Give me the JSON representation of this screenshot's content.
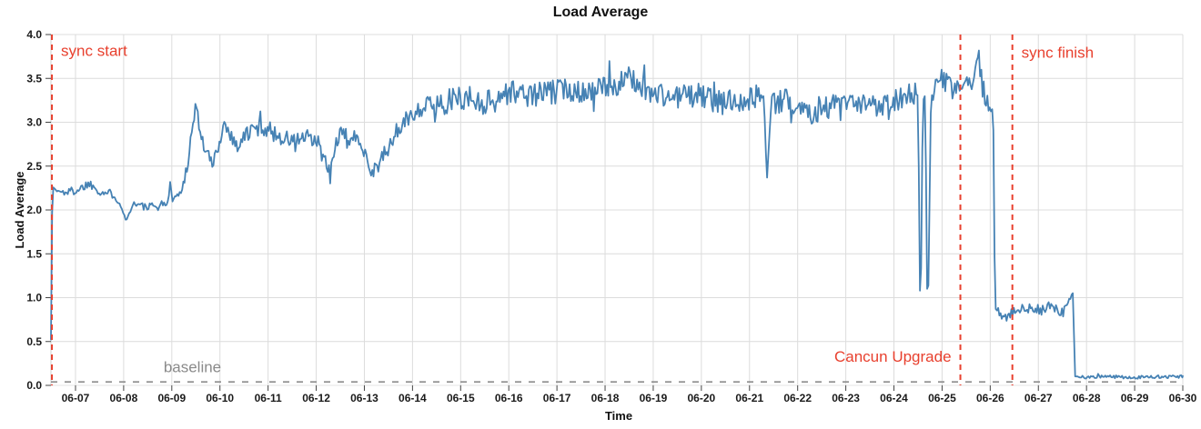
{
  "chart_data": {
    "type": "line",
    "title": "Load Average",
    "xlabel": "Time",
    "ylabel": "Load Average",
    "ylim": [
      0.0,
      4.0
    ],
    "yticks": [
      "0.0",
      "0.5",
      "1.0",
      "1.5",
      "2.0",
      "2.5",
      "3.0",
      "3.5",
      "4.0"
    ],
    "ytick_values": [
      0.0,
      0.5,
      1.0,
      1.5,
      2.0,
      2.5,
      3.0,
      3.5,
      4.0
    ],
    "xticks": [
      "06-07",
      "06-08",
      "06-09",
      "06-10",
      "06-11",
      "06-12",
      "06-13",
      "06-14",
      "06-15",
      "06-16",
      "06-17",
      "06-18",
      "06-19",
      "06-20",
      "06-21",
      "06-22",
      "06-23",
      "06-24",
      "06-25",
      "06-26",
      "06-27",
      "06-28",
      "06-29",
      "06-30"
    ],
    "xtick_days": [
      7,
      8,
      9,
      10,
      11,
      12,
      13,
      14,
      15,
      16,
      17,
      18,
      19,
      20,
      21,
      22,
      23,
      24,
      25,
      26,
      27,
      28,
      29,
      30
    ],
    "xlim_days": [
      6.49,
      30.0
    ],
    "grid": true,
    "colors": {
      "series": "#4682b4",
      "annotation_red": "#e8402e",
      "baseline_gray": "#8c8c8c",
      "gridline": "#dcdcdc",
      "tick": "#444444"
    },
    "series": [
      {
        "name": "load average",
        "color": "#4682b4",
        "keypoints": [
          [
            6.49,
            0.55
          ],
          [
            6.52,
            2.25
          ],
          [
            6.7,
            2.2
          ],
          [
            7.0,
            2.22
          ],
          [
            7.3,
            2.3
          ],
          [
            7.55,
            2.2
          ],
          [
            7.8,
            2.18
          ],
          [
            7.95,
            2.05
          ],
          [
            8.05,
            1.87
          ],
          [
            8.2,
            2.08
          ],
          [
            8.5,
            2.02
          ],
          [
            8.75,
            2.05
          ],
          [
            8.93,
            2.1
          ],
          [
            8.97,
            2.35
          ],
          [
            9.02,
            2.12
          ],
          [
            9.2,
            2.2
          ],
          [
            9.35,
            2.6
          ],
          [
            9.5,
            3.22
          ],
          [
            9.62,
            2.8
          ],
          [
            9.85,
            2.5
          ],
          [
            10.1,
            3.0
          ],
          [
            10.35,
            2.72
          ],
          [
            10.6,
            2.9
          ],
          [
            10.9,
            2.95
          ],
          [
            11.2,
            2.85
          ],
          [
            11.5,
            2.78
          ],
          [
            11.8,
            2.82
          ],
          [
            12.05,
            2.75
          ],
          [
            12.28,
            2.4
          ],
          [
            12.45,
            2.85
          ],
          [
            12.7,
            2.82
          ],
          [
            12.95,
            2.78
          ],
          [
            13.15,
            2.42
          ],
          [
            13.45,
            2.65
          ],
          [
            13.75,
            2.95
          ],
          [
            14.1,
            3.15
          ],
          [
            14.5,
            3.2
          ],
          [
            15.0,
            3.28
          ],
          [
            15.5,
            3.22
          ],
          [
            16.0,
            3.35
          ],
          [
            16.6,
            3.3
          ],
          [
            17.2,
            3.38
          ],
          [
            17.8,
            3.35
          ],
          [
            18.3,
            3.45
          ],
          [
            18.55,
            3.5
          ],
          [
            18.9,
            3.35
          ],
          [
            19.4,
            3.28
          ],
          [
            19.9,
            3.32
          ],
          [
            20.4,
            3.22
          ],
          [
            20.9,
            3.28
          ],
          [
            21.3,
            3.3
          ],
          [
            21.36,
            2.32
          ],
          [
            21.45,
            3.2
          ],
          [
            21.8,
            3.25
          ],
          [
            22.3,
            3.12
          ],
          [
            22.8,
            3.2
          ],
          [
            23.3,
            3.18
          ],
          [
            23.8,
            3.22
          ],
          [
            24.2,
            3.3
          ],
          [
            24.5,
            3.32
          ],
          [
            24.55,
            0.52
          ],
          [
            24.6,
            3.25
          ],
          [
            24.65,
            3.3
          ],
          [
            24.7,
            0.55
          ],
          [
            24.77,
            3.3
          ],
          [
            25.0,
            3.5
          ],
          [
            25.2,
            3.35
          ],
          [
            25.45,
            3.45
          ],
          [
            25.6,
            3.35
          ],
          [
            25.75,
            3.82
          ],
          [
            25.85,
            3.35
          ],
          [
            26.0,
            3.25
          ],
          [
            26.06,
            3.2
          ],
          [
            26.1,
            0.88
          ],
          [
            26.3,
            0.78
          ],
          [
            26.55,
            0.85
          ],
          [
            26.8,
            0.88
          ],
          [
            27.0,
            0.82
          ],
          [
            27.2,
            0.9
          ],
          [
            27.45,
            0.85
          ],
          [
            27.6,
            0.92
          ],
          [
            27.72,
            1.05
          ],
          [
            27.76,
            0.1
          ],
          [
            28.0,
            0.09
          ],
          [
            28.5,
            0.1
          ],
          [
            29.0,
            0.09
          ],
          [
            29.5,
            0.1
          ],
          [
            30.0,
            0.1
          ]
        ],
        "noise_segments": [
          [
            6.49,
            6.6,
            0.02
          ],
          [
            6.6,
            7.9,
            0.05
          ],
          [
            7.9,
            8.25,
            0.02
          ],
          [
            8.25,
            9.25,
            0.05
          ],
          [
            9.25,
            10.45,
            0.08
          ],
          [
            10.45,
            13.25,
            0.1
          ],
          [
            13.25,
            14.2,
            0.1
          ],
          [
            14.2,
            24.48,
            0.14
          ],
          [
            24.48,
            24.8,
            0.02
          ],
          [
            24.8,
            26.07,
            0.13
          ],
          [
            26.07,
            26.14,
            0.01
          ],
          [
            26.14,
            27.73,
            0.06
          ],
          [
            27.73,
            30.0,
            0.018
          ]
        ]
      }
    ],
    "annotations": {
      "vlines": [
        {
          "label": "sync start",
          "day": 6.51,
          "color": "#e8402e",
          "label_side": "right",
          "label_value": 3.82
        },
        {
          "label": "Cancun Upgrade",
          "day": 25.38,
          "color": "#e8402e",
          "label_side": "left",
          "label_value": 0.33
        },
        {
          "label": "sync finish",
          "day": 26.46,
          "color": "#e8402e",
          "label_side": "right",
          "label_value": 3.8
        }
      ],
      "hline": {
        "label": "baseline",
        "value": 0.04,
        "color": "#8c8c8c",
        "label_color": "#8a8a8a",
        "label_day": 8.83,
        "label_value": 0.21
      }
    }
  }
}
